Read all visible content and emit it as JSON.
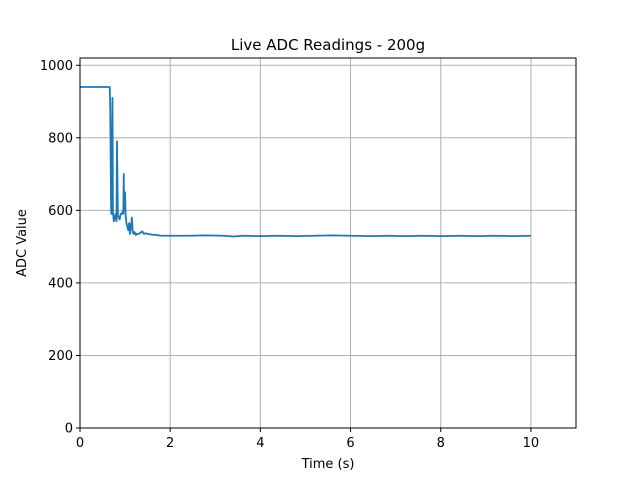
{
  "chart_data": {
    "type": "line",
    "title": "Live ADC Readings - 200g",
    "xlabel": "Time (s)",
    "ylabel": "ADC Value",
    "xlim": [
      0,
      11
    ],
    "ylim": [
      0,
      1020
    ],
    "xticks": [
      0,
      2,
      4,
      6,
      8,
      10
    ],
    "yticks": [
      0,
      200,
      400,
      600,
      800,
      1000
    ],
    "grid": true,
    "series_color": "#1f77b4",
    "series": [
      {
        "x": [
          0,
          0.66,
          0.67,
          0.69,
          0.7,
          0.72,
          0.73,
          0.75,
          0.77,
          0.79,
          0.81,
          0.82,
          0.84,
          0.86,
          0.88,
          0.9,
          0.92,
          0.94,
          0.96,
          0.97,
          0.98,
          1.0,
          1.01,
          1.03,
          1.05,
          1.07,
          1.09,
          1.11,
          1.13,
          1.15,
          1.17,
          1.19,
          1.21,
          1.24,
          1.27,
          1.3,
          1.34,
          1.38,
          1.42,
          1.46,
          1.5,
          1.6,
          1.7,
          1.8,
          2.0,
          2.4,
          2.8,
          3.2,
          3.4,
          3.6,
          4.0,
          4.4,
          4.8,
          5.2,
          5.6,
          6.0,
          6.4,
          6.8,
          7.2,
          7.6,
          8.0,
          8.4,
          8.8,
          9.2,
          9.6,
          10.0
        ],
        "y": [
          940,
          940,
          890,
          600,
          590,
          910,
          595,
          570,
          580,
          590,
          570,
          790,
          585,
          580,
          575,
          590,
          590,
          595,
          590,
          700,
          600,
          650,
          590,
          565,
          555,
          545,
          565,
          535,
          555,
          580,
          540,
          535,
          540,
          532,
          536,
          535,
          538,
          542,
          535,
          537,
          535,
          533,
          532,
          530,
          530,
          530,
          531,
          530,
          528,
          530,
          529,
          530,
          529,
          530,
          531,
          530,
          529,
          530,
          529,
          530,
          529,
          530,
          529,
          530,
          529,
          530
        ]
      }
    ]
  }
}
